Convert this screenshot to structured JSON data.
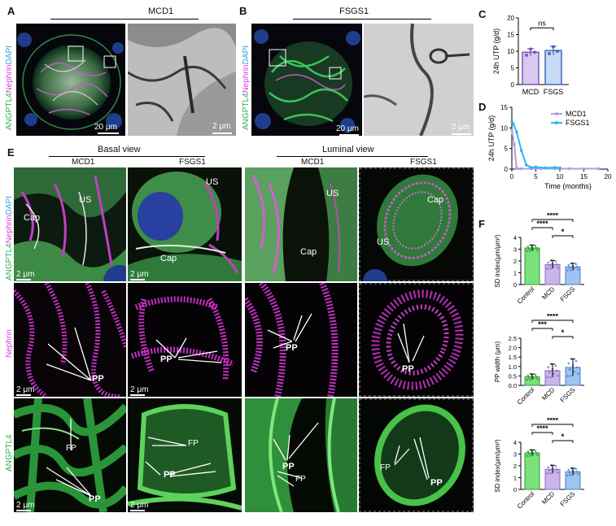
{
  "panels": {
    "A": {
      "letter": "A",
      "title": "MCD1",
      "scale_fluor": "20 μm",
      "scale_em": "2 μm"
    },
    "B": {
      "letter": "B",
      "title": "FSGS1",
      "scale_fluor": "20 μm",
      "scale_em": "2 μm"
    },
    "C": {
      "letter": "C"
    },
    "D": {
      "letter": "D"
    },
    "E": {
      "letter": "E"
    },
    "F": {
      "letter": "F"
    }
  },
  "stain_labels": {
    "angptl4": "ANGPTL4",
    "nephrin": "Nephrin",
    "dapi": "DAPI"
  },
  "panel_E": {
    "basal_header": "Basal view",
    "luminal_header": "Luminal view",
    "columns": [
      "MCD1",
      "FSGS1",
      "MCD1",
      "FSGS1"
    ],
    "row_labels": {
      "nephrin": "Nephrin",
      "angptl4": "ANGPTL4"
    },
    "scale": "2 μm",
    "annotations": {
      "cap": "Cap",
      "us": "US",
      "pp": "PP",
      "fp": "FP"
    }
  },
  "chart_data": [
    {
      "id": "C",
      "type": "bar",
      "categories": [
        "MCD",
        "FSGS"
      ],
      "values": [
        9.7,
        10.2
      ],
      "errors": [
        1.1,
        1.3
      ],
      "points": [
        [
          8.8,
          10.6,
          9.7
        ],
        [
          9.3,
          11.3,
          10.0
        ]
      ],
      "ylabel": "24h UTP (g/d)",
      "ylim": [
        0,
        20
      ],
      "yticks": [
        0,
        5,
        10,
        15,
        20
      ],
      "significance": "ns",
      "colors": {
        "MCD": "#d9c8f0",
        "FSGS": "#c6d9f5",
        "MCD_edge": "#7a58b8",
        "FSGS_edge": "#3f6db5"
      }
    },
    {
      "id": "D",
      "type": "line",
      "xlabel": "Time (months)",
      "ylabel": "24h UTP (g/d)",
      "xlim": [
        0,
        20
      ],
      "ylim": [
        0,
        15
      ],
      "xticks": [
        0,
        5,
        10,
        15,
        20
      ],
      "yticks": [
        0,
        5,
        10,
        15
      ],
      "series": [
        {
          "name": "MCD1",
          "color": "#b39ddb",
          "x": [
            0,
            0.5,
            1,
            2,
            4,
            6,
            9,
            12,
            15,
            18
          ],
          "y": [
            9.5,
            6.0,
            0.2,
            0.1,
            0.1,
            0.1,
            0.1,
            0.1,
            0.1,
            0.1
          ]
        },
        {
          "name": "FSGS1",
          "color": "#29b6f6",
          "x": [
            0,
            0.3,
            1,
            2,
            3,
            4,
            5,
            7,
            9,
            10
          ],
          "y": [
            11.5,
            11.0,
            9.0,
            4.5,
            1.0,
            0.4,
            0.5,
            0.3,
            0.4,
            0.3
          ]
        }
      ]
    },
    {
      "id": "F1",
      "type": "bar",
      "categories": [
        "Control",
        "MCD",
        "FSGS"
      ],
      "values": [
        3.1,
        1.7,
        1.5
      ],
      "errors": [
        0.25,
        0.35,
        0.3
      ],
      "ylabel": "SD index(μm/μm²)",
      "ylim": [
        0,
        4
      ],
      "yticks": [
        0,
        1,
        2,
        3,
        4
      ],
      "significance": [
        {
          "pair": [
            "Control",
            "FSGS"
          ],
          "label": "****"
        },
        {
          "pair": [
            "Control",
            "MCD"
          ],
          "label": "****"
        },
        {
          "pair": [
            "MCD",
            "FSGS"
          ],
          "label": "*"
        }
      ],
      "colors": [
        "#7be07b",
        "#c9b5e8",
        "#9fc3ef"
      ]
    },
    {
      "id": "F2",
      "type": "bar",
      "categories": [
        "Control",
        "MCD",
        "FSGS"
      ],
      "values": [
        0.45,
        0.78,
        0.95
      ],
      "errors": [
        0.15,
        0.35,
        0.45
      ],
      "ylabel": "PP width (μm)",
      "ylim": [
        0,
        2.5
      ],
      "yticks": [
        0.0,
        0.5,
        1.0,
        1.5,
        2.0,
        2.5
      ],
      "significance": [
        {
          "pair": [
            "Control",
            "FSGS"
          ],
          "label": "****"
        },
        {
          "pair": [
            "Control",
            "MCD"
          ],
          "label": "***"
        },
        {
          "pair": [
            "MCD",
            "FSGS"
          ],
          "label": "*"
        }
      ],
      "colors": [
        "#7be07b",
        "#c9b5e8",
        "#9fc3ef"
      ]
    },
    {
      "id": "F3",
      "type": "bar",
      "categories": [
        "Control",
        "MCD",
        "FSGS"
      ],
      "values": [
        3.1,
        1.7,
        1.5
      ],
      "errors": [
        0.25,
        0.35,
        0.3
      ],
      "ylabel": "SD index(μm/μm²)",
      "ylim": [
        0,
        4
      ],
      "yticks": [
        0,
        1,
        2,
        3,
        4
      ],
      "significance": [
        {
          "pair": [
            "Control",
            "FSGS"
          ],
          "label": "****"
        },
        {
          "pair": [
            "Control",
            "MCD"
          ],
          "label": "****"
        },
        {
          "pair": [
            "MCD",
            "FSGS"
          ],
          "label": "*"
        }
      ],
      "colors": [
        "#7be07b",
        "#c9b5e8",
        "#9fc3ef"
      ]
    }
  ]
}
